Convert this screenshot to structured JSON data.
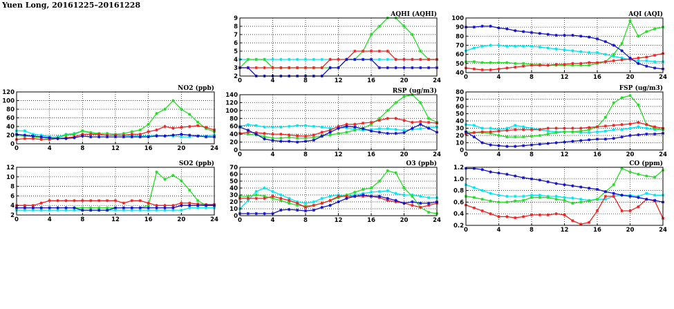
{
  "page": {
    "title": "Yuen Long, 20161225–20161228"
  },
  "colors": {
    "green": "#22dd22",
    "red": "#ee2222",
    "blue": "#1111cc",
    "cyan": "#00e5ee"
  },
  "chart_data": [
    {
      "id": "no2",
      "type": "line",
      "title": "NO2 (ppb)",
      "xlim": [
        0,
        24
      ],
      "ylim": [
        0,
        120
      ],
      "xticks": [
        0,
        4,
        8,
        12,
        16,
        20,
        24
      ],
      "yticks": [
        0,
        20,
        40,
        60,
        80,
        100,
        120
      ],
      "grid": true,
      "series": [
        {
          "color": "cyan",
          "values": [
            30,
            30,
            22,
            20,
            16,
            16,
            22,
            24,
            30,
            25,
            22,
            20,
            20,
            20,
            18,
            18,
            18,
            20,
            18,
            18,
            16,
            16,
            18,
            18,
            20
          ]
        },
        {
          "color": "green",
          "values": [
            20,
            18,
            16,
            14,
            12,
            14,
            20,
            22,
            30,
            26,
            24,
            24,
            22,
            24,
            28,
            32,
            45,
            70,
            80,
            100,
            80,
            68,
            50,
            35,
            28
          ]
        },
        {
          "color": "red",
          "values": [
            10,
            12,
            12,
            10,
            10,
            12,
            14,
            16,
            22,
            22,
            22,
            20,
            20,
            20,
            22,
            22,
            28,
            32,
            40,
            36,
            38,
            40,
            42,
            38,
            32
          ]
        },
        {
          "color": "blue",
          "values": [
            22,
            20,
            18,
            16,
            14,
            12,
            12,
            14,
            18,
            16,
            16,
            16,
            16,
            16,
            16,
            16,
            16,
            18,
            18,
            20,
            22,
            20,
            18,
            16,
            16
          ]
        }
      ]
    },
    {
      "id": "so2",
      "type": "line",
      "title": "SO2 (ppb)",
      "xlim": [
        0,
        24
      ],
      "ylim": [
        2,
        12
      ],
      "xticks": [
        0,
        4,
        8,
        12,
        16,
        20,
        24
      ],
      "yticks": [
        2,
        4,
        6,
        8,
        10,
        12
      ],
      "grid": true,
      "series": [
        {
          "color": "cyan",
          "values": [
            3,
            3,
            3,
            3,
            3,
            3,
            3,
            3,
            3,
            3,
            3,
            3,
            3,
            3,
            3,
            3,
            3,
            3,
            3,
            3,
            3,
            3.5,
            3.5,
            3.5,
            3.5
          ]
        },
        {
          "color": "green",
          "values": [
            3.5,
            3.5,
            3.5,
            3.5,
            3.5,
            3.5,
            3.5,
            3.5,
            3.5,
            3.5,
            3.5,
            3.5,
            3.5,
            3.5,
            3.5,
            3.5,
            4,
            11,
            9.5,
            10.3,
            9.2,
            7.2,
            5,
            4,
            4
          ]
        },
        {
          "color": "red",
          "values": [
            4,
            4,
            4,
            4.5,
            5,
            5,
            5,
            5,
            5,
            5,
            5,
            5,
            5,
            4.5,
            5,
            5,
            4.5,
            4,
            4,
            4,
            4.5,
            4.5,
            4.3,
            4.2,
            4.2
          ]
        },
        {
          "color": "blue",
          "values": [
            3.5,
            3.5,
            3.5,
            3.5,
            3.5,
            3.5,
            3.5,
            3.5,
            3,
            3,
            3,
            3,
            3.5,
            3.5,
            3.5,
            3.5,
            3.5,
            3.5,
            3.5,
            3.5,
            4,
            4,
            4,
            4,
            4
          ]
        }
      ]
    },
    {
      "id": "aqhi",
      "type": "line",
      "title": "AQHI (AQHI)",
      "xlim": [
        0,
        24
      ],
      "ylim": [
        2,
        9
      ],
      "xticks": [
        0,
        4,
        8,
        12,
        16,
        20,
        24
      ],
      "yticks": [
        2,
        3,
        4,
        5,
        6,
        7,
        8,
        9
      ],
      "grid": true,
      "series": [
        {
          "color": "cyan",
          "values": [
            4,
            4,
            4,
            4,
            4,
            4,
            4,
            4,
            4,
            4,
            4,
            4,
            4,
            4,
            4,
            4,
            4,
            4,
            4,
            4,
            4,
            4,
            4,
            4,
            4
          ]
        },
        {
          "color": "green",
          "values": [
            3,
            4,
            4,
            4,
            3,
            3,
            3,
            3,
            3,
            3,
            3,
            3,
            3,
            4,
            4,
            5,
            7,
            8,
            9,
            9,
            8,
            7,
            5,
            4,
            4
          ]
        },
        {
          "color": "red",
          "values": [
            3,
            3,
            3,
            3,
            3,
            3,
            3,
            3,
            3,
            3,
            3,
            4,
            4,
            4,
            5,
            5,
            5,
            5,
            5,
            4,
            4,
            4,
            4,
            4,
            4
          ]
        },
        {
          "color": "blue",
          "values": [
            3,
            3,
            2,
            2,
            2,
            2,
            2,
            2,
            2,
            2,
            2,
            3,
            3,
            4,
            4,
            4,
            4,
            3,
            3,
            3,
            3,
            3,
            3,
            3,
            3
          ]
        }
      ]
    },
    {
      "id": "rsp",
      "type": "line",
      "title": "RSP (ug/m3)",
      "xlim": [
        0,
        24
      ],
      "ylim": [
        0,
        140
      ],
      "xticks": [
        0,
        4,
        8,
        12,
        16,
        20,
        24
      ],
      "yticks": [
        0,
        20,
        40,
        60,
        80,
        100,
        120,
        140
      ],
      "grid": true,
      "series": [
        {
          "color": "cyan",
          "values": [
            60,
            64,
            62,
            58,
            58,
            58,
            60,
            62,
            62,
            60,
            58,
            55,
            56,
            56,
            52,
            50,
            52,
            54,
            54,
            52,
            50,
            52,
            54,
            56,
            58
          ]
        },
        {
          "color": "green",
          "values": [
            42,
            40,
            38,
            34,
            30,
            30,
            32,
            30,
            30,
            32,
            36,
            38,
            42,
            45,
            50,
            55,
            65,
            80,
            100,
            120,
            135,
            140,
            120,
            80,
            70
          ]
        },
        {
          "color": "red",
          "values": [
            42,
            45,
            44,
            42,
            40,
            40,
            38,
            36,
            35,
            38,
            45,
            50,
            60,
            65,
            65,
            68,
            70,
            75,
            80,
            80,
            75,
            70,
            72,
            70,
            68
          ]
        },
        {
          "color": "blue",
          "values": [
            58,
            50,
            40,
            28,
            24,
            22,
            22,
            20,
            22,
            25,
            35,
            45,
            55,
            60,
            58,
            54,
            48,
            45,
            42,
            42,
            44,
            55,
            65,
            55,
            45
          ]
        }
      ]
    },
    {
      "id": "o3",
      "type": "line",
      "title": "O3 (ppb)",
      "xlim": [
        0,
        24
      ],
      "ylim": [
        0,
        70
      ],
      "xticks": [
        0,
        4,
        8,
        12,
        16,
        20,
        24
      ],
      "yticks": [
        0,
        10,
        20,
        30,
        40,
        50,
        60,
        70
      ],
      "grid": true,
      "series": [
        {
          "color": "cyan",
          "values": [
            10,
            22,
            35,
            40,
            35,
            30,
            25,
            20,
            18,
            20,
            25,
            28,
            30,
            28,
            30,
            32,
            34,
            35,
            36,
            32,
            30,
            30,
            28,
            26,
            26
          ]
        },
        {
          "color": "green",
          "values": [
            28,
            28,
            30,
            28,
            25,
            22,
            18,
            15,
            14,
            15,
            18,
            22,
            26,
            30,
            34,
            38,
            40,
            50,
            65,
            62,
            40,
            28,
            12,
            5,
            3
          ]
        },
        {
          "color": "red",
          "values": [
            25,
            25,
            25,
            25,
            28,
            25,
            22,
            18,
            12,
            15,
            18,
            22,
            28,
            28,
            28,
            28,
            28,
            26,
            22,
            20,
            18,
            15,
            12,
            15,
            18
          ]
        },
        {
          "color": "blue",
          "values": [
            3,
            3,
            3,
            3,
            3,
            8,
            9,
            8,
            7,
            8,
            12,
            15,
            20,
            25,
            28,
            30,
            28,
            28,
            25,
            22,
            18,
            20,
            18,
            18,
            20
          ]
        }
      ]
    },
    {
      "id": "aqi",
      "type": "line",
      "title": "AQI (AQI)",
      "xlim": [
        0,
        24
      ],
      "ylim": [
        40,
        100
      ],
      "xticks": [
        0,
        4,
        8,
        12,
        16,
        20,
        24
      ],
      "yticks": [
        40,
        50,
        60,
        70,
        80,
        90,
        100
      ],
      "grid": true,
      "series": [
        {
          "color": "cyan",
          "values": [
            64,
            67,
            69,
            70,
            70,
            69,
            69,
            69,
            69,
            68,
            67,
            66,
            65,
            64,
            63,
            62,
            62,
            60,
            58,
            56,
            54,
            53,
            53,
            52,
            52
          ]
        },
        {
          "color": "green",
          "values": [
            52,
            52,
            51,
            51,
            51,
            51,
            50,
            50,
            49,
            49,
            48,
            48,
            48,
            48,
            48,
            48,
            50,
            52,
            60,
            72,
            97,
            80,
            85,
            88,
            90
          ]
        },
        {
          "color": "red",
          "values": [
            45,
            44,
            43,
            43,
            44,
            45,
            46,
            47,
            48,
            48,
            48,
            49,
            49,
            50,
            50,
            51,
            51,
            52,
            53,
            54,
            55,
            56,
            57,
            59,
            61
          ]
        },
        {
          "color": "blue",
          "values": [
            90,
            90,
            91,
            91,
            89,
            88,
            86,
            85,
            84,
            83,
            82,
            81,
            81,
            81,
            80,
            79,
            77,
            74,
            70,
            64,
            56,
            50,
            47,
            45,
            44
          ]
        }
      ]
    },
    {
      "id": "fsp",
      "type": "line",
      "title": "FSP (ug/m3)",
      "xlim": [
        0,
        24
      ],
      "ylim": [
        0,
        80
      ],
      "xticks": [
        0,
        4,
        8,
        12,
        16,
        20,
        24
      ],
      "yticks": [
        0,
        10,
        20,
        30,
        40,
        50,
        60,
        70,
        80
      ],
      "grid": true,
      "series": [
        {
          "color": "cyan",
          "values": [
            35,
            34,
            30,
            30,
            28,
            30,
            34,
            32,
            30,
            28,
            26,
            25,
            25,
            25,
            24,
            24,
            25,
            26,
            28,
            28,
            30,
            32,
            30,
            28,
            28
          ]
        },
        {
          "color": "green",
          "values": [
            25,
            24,
            24,
            23,
            20,
            18,
            18,
            18,
            19,
            20,
            22,
            24,
            25,
            25,
            26,
            28,
            32,
            45,
            65,
            72,
            75,
            62,
            35,
            30,
            28
          ]
        },
        {
          "color": "red",
          "values": [
            22,
            24,
            25,
            25,
            26,
            27,
            28,
            28,
            28,
            28,
            30,
            30,
            30,
            30,
            30,
            31,
            32,
            33,
            34,
            35,
            36,
            38,
            35,
            32,
            30
          ]
        },
        {
          "color": "blue",
          "values": [
            25,
            18,
            10,
            7,
            6,
            5,
            5,
            6,
            7,
            8,
            9,
            10,
            11,
            12,
            13,
            14,
            15,
            15,
            16,
            18,
            20,
            21,
            22,
            22,
            23
          ]
        }
      ]
    },
    {
      "id": "co",
      "type": "line",
      "title": "CO (ppm)",
      "xlim": [
        0,
        24
      ],
      "ylim": [
        0.2,
        1.2
      ],
      "xticks": [
        0,
        4,
        8,
        12,
        16,
        20,
        24
      ],
      "yticks": [
        0.2,
        0.4,
        0.6,
        0.8,
        1.0,
        1.2
      ],
      "ytick_labels": [
        "0.2",
        "0.4",
        "0.6",
        "0.8",
        "1.0",
        "1.2"
      ],
      "grid": true,
      "series": [
        {
          "color": "cyan",
          "values": [
            0.9,
            0.85,
            0.8,
            0.75,
            0.72,
            0.7,
            0.7,
            0.7,
            0.72,
            0.72,
            0.7,
            0.7,
            0.68,
            0.67,
            0.65,
            0.63,
            0.65,
            0.65,
            0.7,
            0.72,
            0.72,
            0.7,
            0.75,
            0.72,
            0.72
          ]
        },
        {
          "color": "green",
          "values": [
            0.7,
            0.68,
            0.65,
            0.62,
            0.6,
            0.6,
            0.62,
            0.63,
            0.68,
            0.68,
            0.68,
            0.65,
            0.63,
            0.58,
            0.6,
            0.62,
            0.65,
            0.78,
            0.9,
            1.18,
            1.12,
            1.08,
            1.05,
            1.03,
            1.15
          ]
        },
        {
          "color": "red",
          "values": [
            0.55,
            0.5,
            0.45,
            0.4,
            0.35,
            0.35,
            0.33,
            0.35,
            0.38,
            0.38,
            0.38,
            0.4,
            0.38,
            0.28,
            0.22,
            0.25,
            0.45,
            0.7,
            0.7,
            0.45,
            0.45,
            0.52,
            0.65,
            0.62,
            0.32
          ]
        },
        {
          "color": "blue",
          "values": [
            1.18,
            1.18,
            1.16,
            1.12,
            1.1,
            1.08,
            1.05,
            1.02,
            1.0,
            0.98,
            0.95,
            0.92,
            0.9,
            0.88,
            0.86,
            0.84,
            0.82,
            0.78,
            0.75,
            0.72,
            0.7,
            0.68,
            0.65,
            0.63,
            0.6
          ]
        }
      ]
    }
  ]
}
